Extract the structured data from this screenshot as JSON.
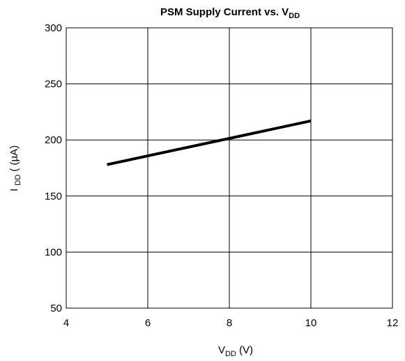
{
  "chart_data": {
    "type": "line",
    "title": [
      "PSM Supply Current vs. V",
      "DD"
    ],
    "x_label": [
      "V",
      "DD",
      " (V)"
    ],
    "y_label": [
      "I ",
      "DD",
      " ( (µA)"
    ],
    "x": [
      5,
      10
    ],
    "series": [
      {
        "color": "#000000",
        "values": [
          178,
          217
        ]
      }
    ],
    "xlim": [
      4,
      12
    ],
    "xticks": [
      4,
      6,
      8,
      10,
      12
    ],
    "ylim": [
      50,
      300
    ],
    "yticks": [
      50,
      100,
      150,
      200,
      250,
      300
    ],
    "grid": true
  }
}
